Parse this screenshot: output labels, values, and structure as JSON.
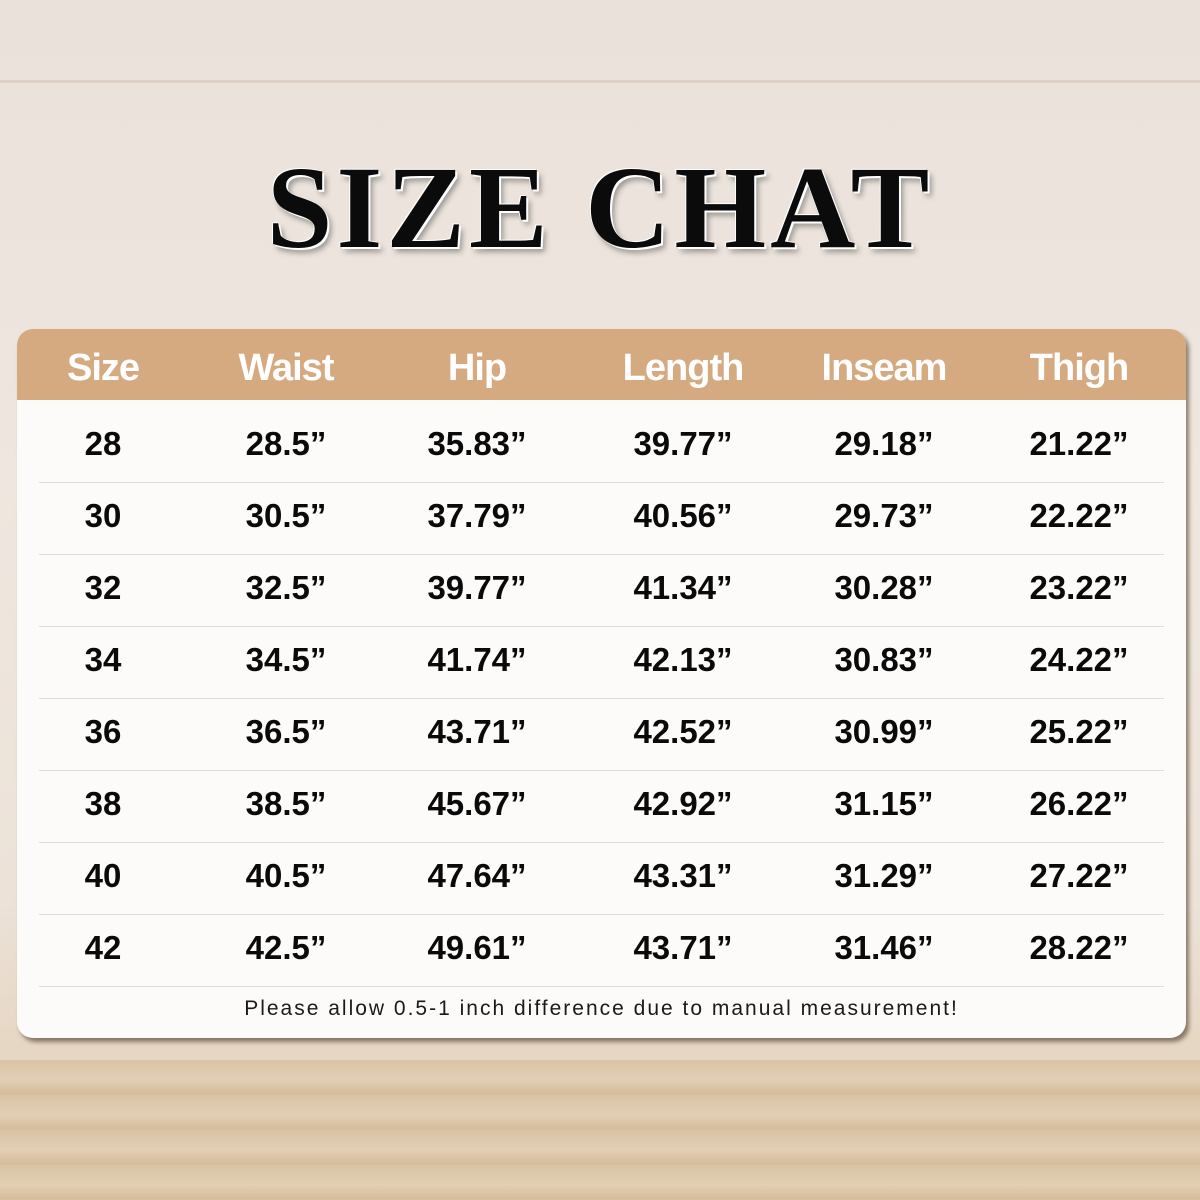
{
  "title": "SIZE CHAT",
  "table": {
    "header_color": "#d6aa80",
    "columns": [
      "Size",
      "Waist",
      "Hip",
      "Length",
      "Inseam",
      "Thigh"
    ],
    "rows": [
      [
        "28",
        "28.5”",
        "35.83”",
        "39.77”",
        "29.18”",
        "21.22”"
      ],
      [
        "30",
        "30.5”",
        "37.79”",
        "40.56”",
        "29.73”",
        "22.22”"
      ],
      [
        "32",
        "32.5”",
        "39.77”",
        "41.34”",
        "30.28”",
        "23.22”"
      ],
      [
        "34",
        "34.5”",
        "41.74”",
        "42.13”",
        "30.83”",
        "24.22”"
      ],
      [
        "36",
        "36.5”",
        "43.71”",
        "42.52”",
        "30.99”",
        "25.22”"
      ],
      [
        "38",
        "38.5”",
        "45.67”",
        "42.92”",
        "31.15”",
        "26.22”"
      ],
      [
        "40",
        "40.5”",
        "47.64”",
        "43.31”",
        "31.29”",
        "27.22”"
      ],
      [
        "42",
        "42.5”",
        "49.61”",
        "43.71”",
        "31.46”",
        "28.22”"
      ]
    ]
  },
  "note": "Please allow 0.5-1 inch difference due to manual measurement!"
}
